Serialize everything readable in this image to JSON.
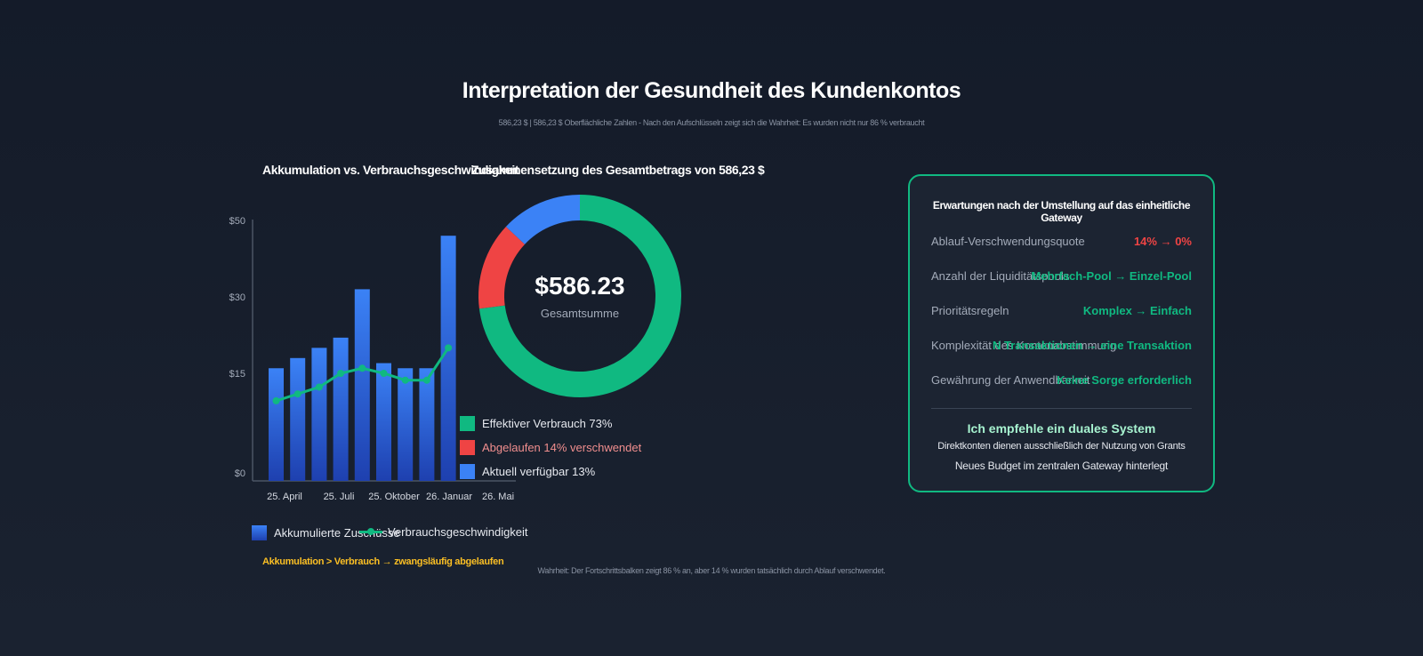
{
  "header": {
    "title": "Interpretation der Gesundheit des Kundenkontos",
    "subtitle": "586,23 $ | 586,23 $ Oberflächliche Zahlen - Nach den Aufschlüsseln zeigt sich die Wahrheit: Es wurden nicht nur 86 % verbraucht"
  },
  "colors": {
    "accent": "#10b981",
    "expired": "#ef4444",
    "available": "#3b82f6",
    "warning": "#fbbf24",
    "background": "#141b29"
  },
  "chart_data": [
    {
      "type": "bar",
      "title": "Akkumulation vs. Verbrauchsgeschwindigkeit",
      "y_ticks": [
        "$50",
        "$30",
        "$15",
        "$0"
      ],
      "y_tick_values": [
        50,
        30,
        15,
        0
      ],
      "ylim": [
        0,
        50
      ],
      "x_labels": [
        "25. April",
        "25. Juli",
        "25. Oktober",
        "26. Januar",
        "26. Mai"
      ],
      "series": [
        {
          "name": "Akkumulierte Zuschüsse",
          "type": "bar",
          "values": [
            16,
            18,
            20,
            22,
            32,
            17,
            16,
            16,
            46
          ]
        },
        {
          "name": "Verbrauchsgeschwindigkeit",
          "type": "line",
          "values": [
            11,
            12,
            13,
            15,
            16,
            15,
            14,
            14,
            20
          ]
        }
      ],
      "grid": false
    },
    {
      "type": "pie",
      "title": "Zusammensetzung des Gesamtbetrags von 586,23 $",
      "center_value": "$586.23",
      "center_label": "Gesamtsumme",
      "slices": [
        {
          "label": "Effektiver Verbrauch 73%",
          "value": 73,
          "color": "#10b981"
        },
        {
          "label": "Abgelaufen 14% verschwendet",
          "value": 14,
          "color": "#ef4444"
        },
        {
          "label": "Aktuell verfügbar 13%",
          "value": 13,
          "color": "#3b82f6"
        }
      ]
    }
  ],
  "bar_legend": {
    "bars": "Akkumulierte Zuschüsse",
    "line": "Verbrauchsgeschwindigkeit"
  },
  "warning_text": "Akkumulation > Verbrauch → zwangsläufig abgelaufen",
  "footnote": "Wahrheit: Der Fortschrittsbalken zeigt 86 % an, aber 14 % wurden tatsächlich durch Ablauf verschwendet.",
  "panel": {
    "title": "Erwartungen nach der Umstellung auf das einheitliche Gateway",
    "rows": [
      {
        "label": "Ablauf-Verschwendungsquote",
        "value": "14% → 0%",
        "color": "#ef4444"
      },
      {
        "label": "Anzahl der Liquiditätspools",
        "value": "Mehrfach-Pool → Einzel-Pool",
        "color": "#10b981"
      },
      {
        "label": "Prioritätsregeln",
        "value": "Komplex → Einfach",
        "color": "#10b981"
      },
      {
        "label": "Komplexität des Kontenabstimmung",
        "value": "N Transaktionen → eine Transaktion",
        "color": "#10b981"
      },
      {
        "label": "Gewährung der Anwendbarkeit",
        "value": "Keine Sorge erforderlich",
        "color": "#10b981"
      }
    ],
    "recommendation": {
      "title": "Ich empfehle ein duales System",
      "line1": "Direktkonten dienen ausschließlich der Nutzung von Grants",
      "line2": "Neues Budget im zentralen Gateway hinterlegt"
    }
  }
}
